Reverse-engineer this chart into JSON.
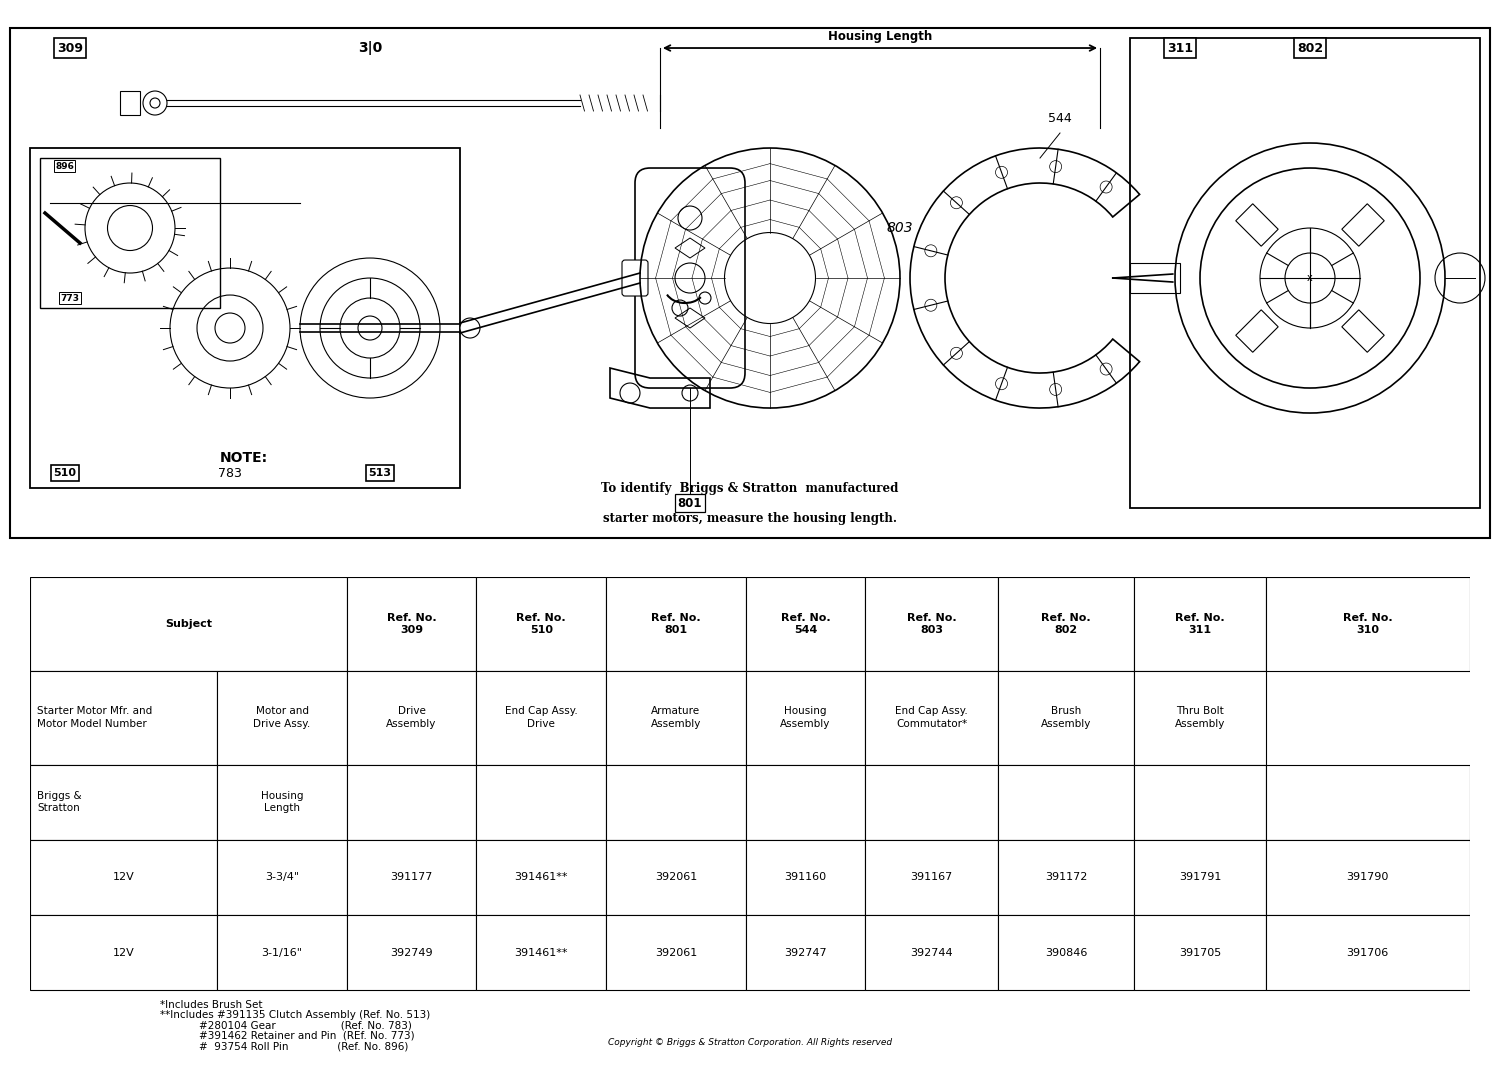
{
  "bg_color": "#ffffff",
  "diagram_bg": "#ffffff",
  "title_text_line1": "To identify  Briggs & Stratton  manufactured",
  "title_text_line2": "starter motors, measure the housing length.",
  "housing_length_label": "Housing Length",
  "footnote1": "*Includes Brush Set",
  "footnote2": "**Includes #391135 Clutch Assembly (Ref. No. 513)",
  "footnote3": "            #280104 Gear                    (Ref. No. 783)",
  "footnote4": "            #391462 Retainer and Pin  (REf. No. 773)",
  "footnote5": "            #  93754 Roll Pin               (Ref. No. 896)",
  "copyright": "Copyright © Briggs & Stratton Corporation. All Rights reserved",
  "ref_labels": [
    "Ref. No.\n309",
    "Ref. No.\n510",
    "Ref. No.\n801",
    "Ref. No.\n544",
    "Ref. No.\n803",
    "Ref. No.\n802",
    "Ref. No.\n311",
    "Ref. No.\n310"
  ],
  "row1_cells": [
    "Motor and\nDrive Assy.",
    "Drive\nAssembly",
    "End Cap Assy.\nDrive",
    "Armature\nAssembly",
    "Housing\nAssembly",
    "End Cap Assy.\nCommutator*",
    "Brush\nAssembly",
    "Thru Bolt\nAssembly"
  ],
  "row3": [
    "12V",
    "3-3/4\"",
    "391177",
    "391461**",
    "392061",
    "391160",
    "391167",
    "391172",
    "391791",
    "391790"
  ],
  "row4": [
    "12V",
    "3-1/16\"",
    "392749",
    "391461**",
    "392061",
    "392747",
    "392744",
    "390846",
    "391705",
    "391706"
  ]
}
